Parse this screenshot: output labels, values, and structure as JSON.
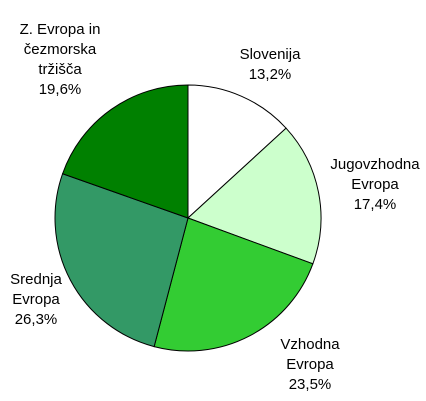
{
  "chart_data": {
    "type": "pie",
    "categories": [
      "Slovenija",
      "Jugovzhodna Evropa",
      "Vzhodna Evropa",
      "Srednja Evropa",
      "Z. Evropa in čezmorska tržišča"
    ],
    "values": [
      13.2,
      17.4,
      23.5,
      26.3,
      19.6
    ],
    "value_labels": [
      "13,2%",
      "17,4%",
      "23,5%",
      "26,3%",
      "19,6%"
    ],
    "colors": [
      "#ffffff",
      "#ccffcc",
      "#33cc33",
      "#339966",
      "#008000"
    ]
  }
}
